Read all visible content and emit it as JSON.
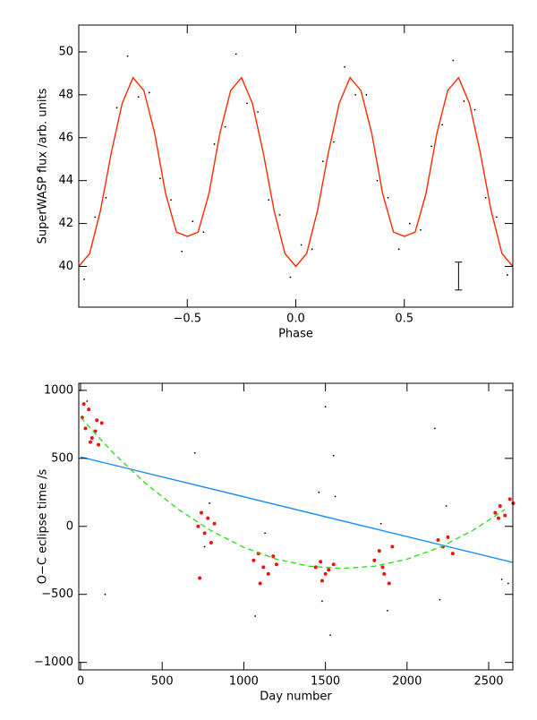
{
  "chart_data": [
    {
      "type": "scatter",
      "x_label": "Phase",
      "y_label": "SuperWASP flux /arb. units",
      "xlim": [
        -1,
        1
      ],
      "ylim": [
        38.1,
        51.25
      ],
      "xticks": [
        {
          "value": -0.5,
          "label": "−0.5"
        },
        {
          "value": 0,
          "label": "0.0"
        },
        {
          "value": 0.5,
          "label": "0.5"
        }
      ],
      "yticks": [
        40,
        42,
        44,
        46,
        48,
        50
      ],
      "series": [
        {
          "mode": "points",
          "color": "#000000",
          "x": [
            -0.975,
            -0.925,
            -0.875,
            -0.825,
            -0.775,
            -0.725,
            -0.675,
            -0.625,
            -0.575,
            -0.525,
            -0.475,
            -0.425,
            -0.375,
            -0.325,
            -0.275,
            -0.225,
            -0.175,
            -0.125,
            -0.075,
            -0.025,
            0.025,
            0.075,
            0.125,
            0.175,
            0.225,
            0.275,
            0.325,
            0.375,
            0.425,
            0.475,
            0.525,
            0.575,
            0.625,
            0.675,
            0.725,
            0.775,
            0.825,
            0.875,
            0.925,
            0.975
          ],
          "values": [
            39.4,
            42.3,
            43.2,
            47.4,
            49.8,
            47.9,
            48.1,
            44.1,
            43.1,
            40.7,
            42.1,
            41.6,
            45.7,
            46.5,
            49.9,
            47.6,
            47.2,
            43.1,
            42.4,
            39.5,
            41.0,
            40.8,
            44.9,
            45.8,
            49.3,
            48.0,
            48.0,
            44.0,
            43.2,
            40.8,
            42.0,
            41.7,
            45.6,
            46.6,
            49.6,
            47.7,
            47.3,
            43.2,
            42.3,
            39.6
          ]
        },
        {
          "mode": "line",
          "color": "#ff2a00",
          "x": [
            -1,
            -0.95,
            -0.9,
            -0.85,
            -0.8,
            -0.75,
            -0.7,
            -0.65,
            -0.6,
            -0.55,
            -0.5,
            -0.45,
            -0.4,
            -0.35,
            -0.3,
            -0.25,
            -0.2,
            -0.15,
            -0.1,
            -0.05,
            0,
            0.05,
            0.1,
            0.15,
            0.2,
            0.25,
            0.3,
            0.35,
            0.4,
            0.45,
            0.5,
            0.55,
            0.6,
            0.65,
            0.7,
            0.75,
            0.8,
            0.85,
            0.9,
            0.95,
            1
          ],
          "values": [
            40.0,
            40.6,
            42.6,
            45.3,
            47.6,
            48.8,
            48.2,
            46.2,
            43.4,
            41.6,
            41.4,
            41.6,
            43.4,
            46.2,
            48.2,
            48.8,
            47.6,
            45.3,
            42.6,
            40.6,
            40.0,
            40.6,
            42.6,
            45.3,
            47.6,
            48.8,
            48.2,
            46.2,
            43.4,
            41.6,
            41.4,
            41.6,
            43.4,
            46.2,
            48.2,
            48.8,
            47.6,
            45.3,
            42.6,
            40.6,
            40.0
          ]
        },
        {
          "mode": "errorbar",
          "color": "#000000",
          "x": [
            0.75
          ],
          "values": [
            39.55
          ],
          "errors": [
            0.65
          ]
        }
      ]
    },
    {
      "type": "scatter",
      "x_label": "Day number",
      "y_label": "O−C eclipse time /s",
      "xlim": [
        -11,
        2648
      ],
      "ylim": [
        -1055,
        1052
      ],
      "xticks": [
        0,
        500,
        1000,
        1500,
        2000,
        2500
      ],
      "yticks": [
        {
          "value": -1000,
          "label": "−1000"
        },
        {
          "value": -500,
          "label": "−500"
        },
        0,
        500,
        1000
      ],
      "series": [
        {
          "mode": "points",
          "color": "#000000",
          "x": [
            150,
            700,
            1070,
            1500,
            1530,
            1550,
            1880,
            2170,
            2200,
            2580,
            2620,
            1480,
            1460,
            1560,
            40,
            760,
            1130,
            1840,
            2240,
            790
          ],
          "values": [
            -500,
            540,
            -660,
            880,
            -800,
            520,
            -620,
            720,
            -540,
            -390,
            -420,
            -550,
            250,
            220,
            920,
            -150,
            -50,
            20,
            150,
            170
          ]
        },
        {
          "mode": "points",
          "color": "#e8160c",
          "x": [
            10,
            30,
            50,
            70,
            90,
            110,
            130,
            20,
            60,
            100,
            720,
            740,
            760,
            780,
            800,
            820,
            730,
            1060,
            1090,
            1120,
            1150,
            1180,
            1200,
            1100,
            1440,
            1470,
            1500,
            1520,
            1550,
            1480,
            1800,
            1830,
            1860,
            1890,
            1910,
            1850,
            2190,
            2220,
            2250,
            2280,
            2540,
            2570,
            2600,
            2630,
            2650,
            2560
          ],
          "values": [
            800,
            720,
            860,
            650,
            700,
            600,
            760,
            900,
            620,
            780,
            0,
            100,
            -50,
            60,
            -120,
            20,
            -380,
            -250,
            -200,
            -300,
            -350,
            -220,
            -280,
            -420,
            -300,
            -260,
            -350,
            -320,
            -280,
            -400,
            -250,
            -180,
            -350,
            -420,
            -150,
            -300,
            -100,
            -150,
            -80,
            -200,
            100,
            150,
            80,
            200,
            170,
            60
          ]
        },
        {
          "mode": "line",
          "color": "#1a8cff",
          "x": [
            0,
            2648
          ],
          "values": [
            510,
            -265
          ]
        },
        {
          "mode": "line",
          "color": "#33dd22",
          "dashed": true,
          "x": [
            0,
            200,
            400,
            600,
            800,
            1000,
            1200,
            1400,
            1600,
            1800,
            2000,
            2200,
            2400,
            2600
          ],
          "values": [
            800,
            540,
            314,
            124,
            -32,
            -154,
            -241,
            -293,
            -310,
            -293,
            -241,
            -154,
            -32,
            124
          ]
        }
      ]
    }
  ]
}
